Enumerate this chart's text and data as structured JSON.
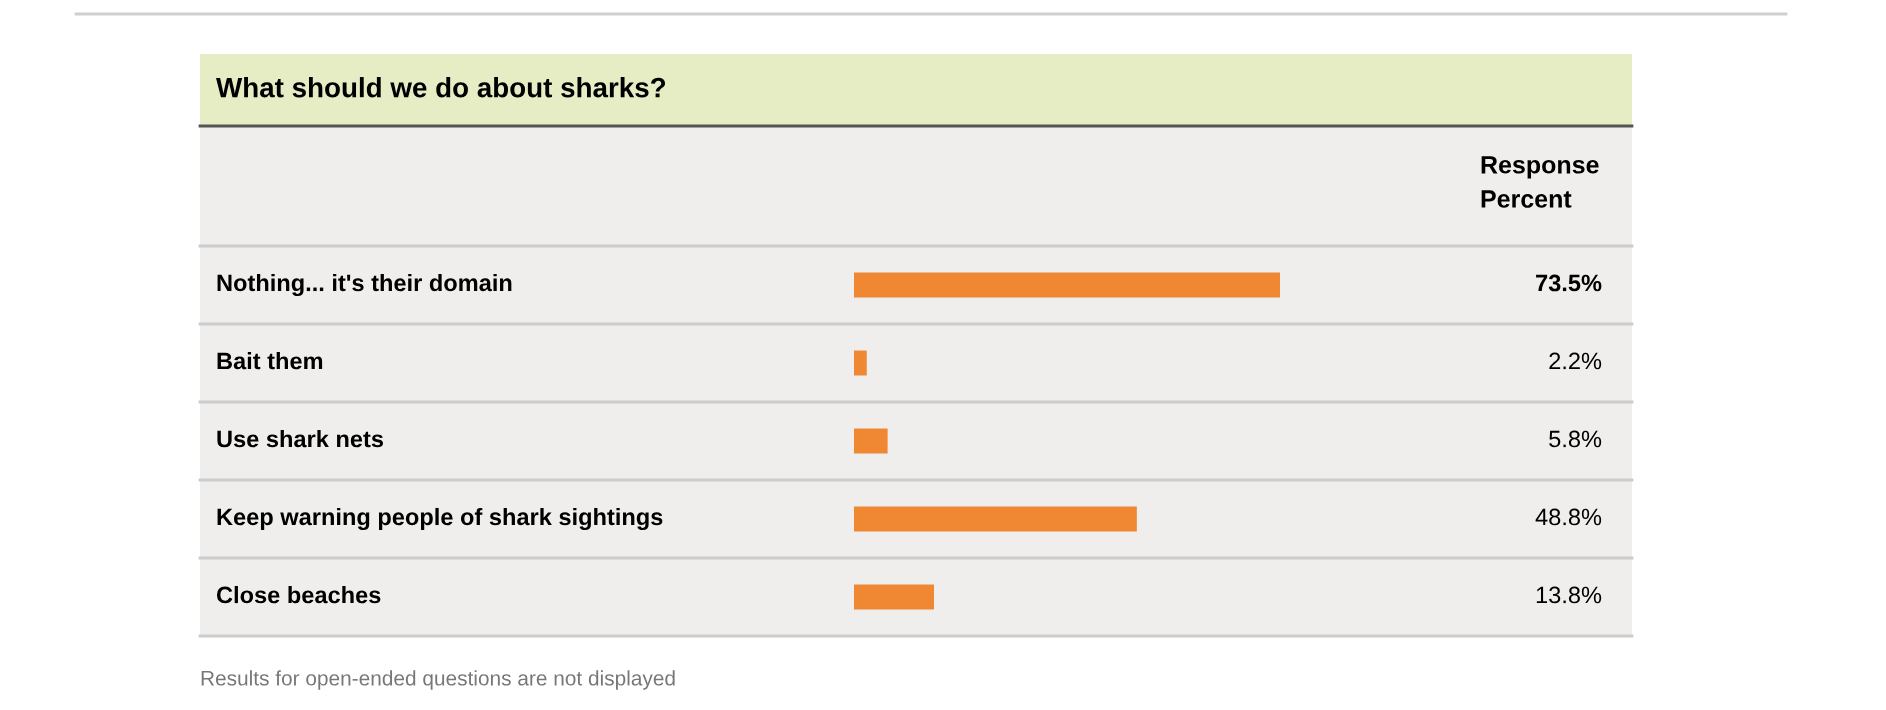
{
  "chart_data": {
    "type": "bar",
    "orientation": "horizontal",
    "title": "What should we do about sharks?",
    "categories": [
      "Nothing... it's their domain",
      "Bait them",
      "Use shark nets",
      "Keep warning people of shark sightings",
      "Close beaches"
    ],
    "values": [
      73.5,
      2.2,
      5.8,
      48.8,
      13.8
    ],
    "value_labels": [
      "73.5%",
      "2.2%",
      "5.8%",
      "48.8%",
      "13.8%"
    ],
    "color": "#ef8733",
    "annotations": [
      "Response\nPercent",
      "Results for open-ended questions are not displayed"
    ]
  }
}
